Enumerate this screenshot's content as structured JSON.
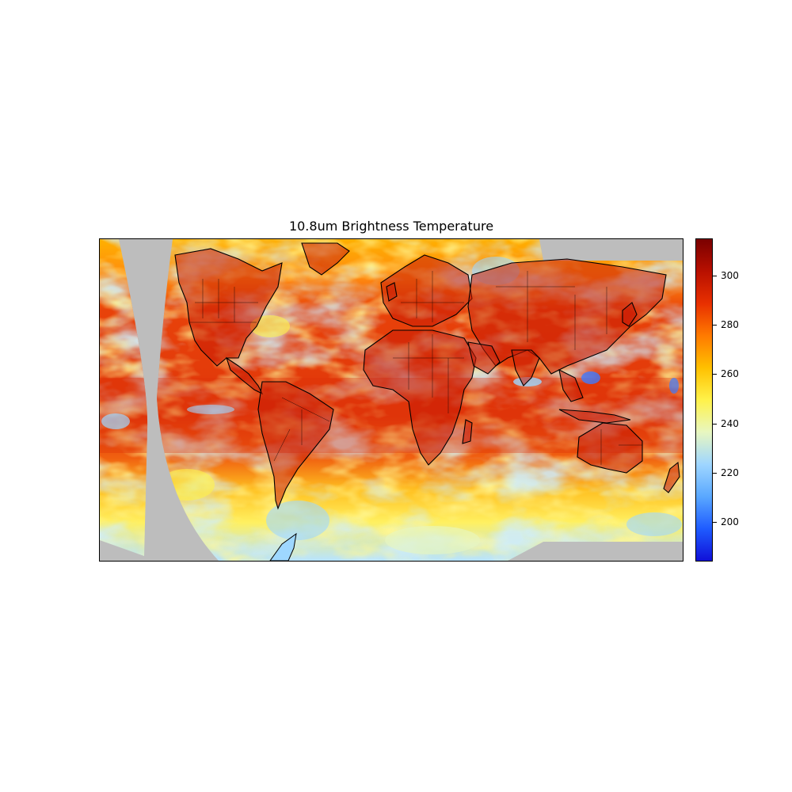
{
  "title": "10.8um Brightness Temperature",
  "colorbar": {
    "min": 184,
    "max": 315,
    "ticks": [
      {
        "value": 200,
        "label": "200"
      },
      {
        "value": 220,
        "label": "220"
      },
      {
        "value": 240,
        "label": "240"
      },
      {
        "value": 260,
        "label": "260"
      },
      {
        "value": 280,
        "label": "280"
      },
      {
        "value": 300,
        "label": "300"
      }
    ],
    "colormap": [
      "#1010d8",
      "#1f5cff",
      "#5aa8ff",
      "#9fd6ff",
      "#e8f7c0",
      "#fff24a",
      "#ffc000",
      "#ff7a00",
      "#e83000",
      "#b81000",
      "#7a0000"
    ]
  },
  "map": {
    "no_data_color": "#bdbdbd",
    "coastline_color": "#000000",
    "border_color": "#000000",
    "dominant_colors": {
      "warm_tropics": "#e03a0a",
      "land_hot": "#c21a06",
      "mid": "#ff9a1a",
      "cool_cloud": "#fff36a",
      "cold_cloud": "#9ed7ff",
      "very_cold": "#3d7bff"
    }
  }
}
